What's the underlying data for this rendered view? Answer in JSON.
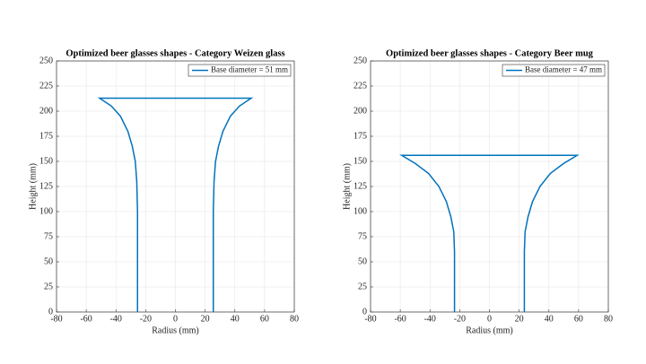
{
  "chart_data": [
    {
      "type": "line",
      "title": "Optimized beer glasses shapes - Category Weizen glass",
      "xlabel": "Radius (mm)",
      "ylabel": "Height (mm)",
      "x": [
        -25.5,
        -25.5,
        -26,
        -27,
        -29,
        -32,
        -37,
        -43,
        -51,
        51,
        43,
        37,
        32,
        29,
        27,
        26,
        25.5,
        25.5
      ],
      "series": [
        {
          "name": "Base diameter =  51 mm",
          "color": "#0072bd",
          "values": [
            0,
            100,
            130,
            150,
            165,
            180,
            195,
            205,
            213,
            213,
            205,
            195,
            180,
            165,
            150,
            130,
            100,
            0
          ]
        }
      ],
      "xlim": [
        -80,
        80
      ],
      "ylim": [
        0,
        250
      ],
      "xticks": [
        -80,
        -60,
        -40,
        -20,
        0,
        20,
        40,
        60,
        80
      ],
      "yticks": [
        0,
        25,
        50,
        75,
        100,
        125,
        150,
        175,
        200,
        225,
        250
      ],
      "grid": true,
      "legend": "upper right"
    },
    {
      "type": "line",
      "title": "Optimized beer glasses shapes - Category Beer mug",
      "xlabel": "Radius (mm)",
      "ylabel": "Height (mm)",
      "x": [
        -23.5,
        -23.5,
        -24,
        -26,
        -29,
        -34,
        -41,
        -50,
        -59,
        59,
        50,
        41,
        34,
        29,
        26,
        24,
        23.5,
        23.5
      ],
      "series": [
        {
          "name": "Base diameter =  47 mm",
          "color": "#0072bd",
          "values": [
            0,
            60,
            80,
            95,
            110,
            125,
            138,
            148,
            156,
            156,
            148,
            138,
            125,
            110,
            95,
            80,
            60,
            0
          ]
        }
      ],
      "xlim": [
        -80,
        80
      ],
      "ylim": [
        0,
        250
      ],
      "xticks": [
        -80,
        -60,
        -40,
        -20,
        0,
        20,
        40,
        60,
        80
      ],
      "yticks": [
        0,
        25,
        50,
        75,
        100,
        125,
        150,
        175,
        200,
        225,
        250
      ],
      "grid": true,
      "legend": "upper right"
    }
  ]
}
